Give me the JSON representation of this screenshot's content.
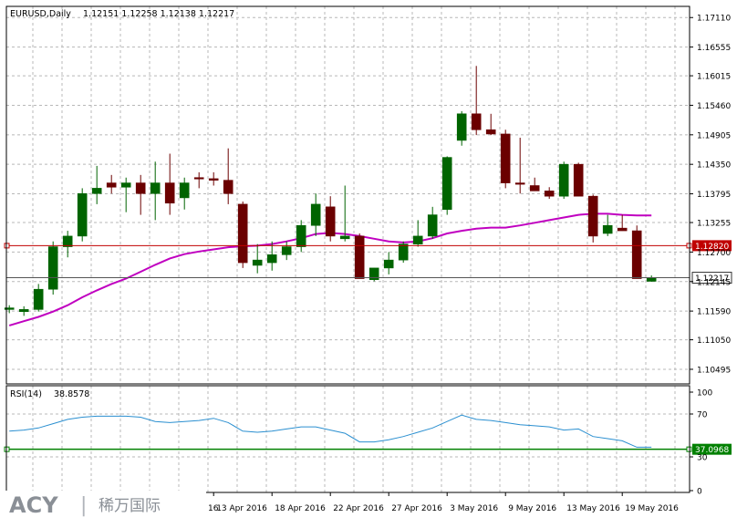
{
  "header": {
    "symbol": "EURUSD,Daily",
    "ohlc": "1.12151 1.12258 1.12138 1.12217"
  },
  "chart_data": [
    {
      "type": "candlestick",
      "title": "EURUSD,Daily",
      "ylim": [
        1.1022,
        1.1732
      ],
      "yticks": [
        "1.17110",
        "1.16555",
        "1.16015",
        "1.15460",
        "1.14905",
        "1.14350",
        "1.13795",
        "1.13255",
        "1.12700",
        "1.12145",
        "1.11590",
        "1.11050",
        "1.10495"
      ],
      "xticks": [
        {
          "i": 14,
          "label": "13 Apr 2016"
        },
        {
          "i": 18,
          "label": "18 Apr 2016"
        },
        {
          "i": 22,
          "label": "22 Apr 2016"
        },
        {
          "i": 26,
          "label": "27 Apr 2016"
        },
        {
          "i": 30,
          "label": "3 May 2016"
        },
        {
          "i": 34,
          "label": "9 May 2016"
        },
        {
          "i": 38,
          "label": "13 May 2016"
        },
        {
          "i": 42,
          "label": "19 May 2016"
        }
      ],
      "hlines": [
        {
          "value": 1.1282,
          "label": "1.12820",
          "color": "#c00000"
        },
        {
          "value": 1.12217,
          "label": "1.12217",
          "color": "#555555"
        }
      ],
      "ma_color": "#c000c0",
      "up_color": "#006400",
      "down_color": "#6b0000",
      "candles": [
        [
          1.1162,
          1.117,
          1.1155,
          1.1165
        ],
        [
          1.1158,
          1.1168,
          1.115,
          1.1162
        ],
        [
          1.1162,
          1.121,
          1.1158,
          1.12
        ],
        [
          1.12,
          1.129,
          1.119,
          1.128
        ],
        [
          1.128,
          1.131,
          1.126,
          1.13
        ],
        [
          1.13,
          1.139,
          1.129,
          1.138
        ],
        [
          1.138,
          1.1432,
          1.136,
          1.139
        ],
        [
          1.14,
          1.1415,
          1.138,
          1.1392
        ],
        [
          1.1392,
          1.141,
          1.1345,
          1.14
        ],
        [
          1.14,
          1.1415,
          1.134,
          1.138
        ],
        [
          1.138,
          1.144,
          1.133,
          1.14
        ],
        [
          1.14,
          1.1455,
          1.134,
          1.1362
        ],
        [
          1.1372,
          1.141,
          1.135,
          1.14
        ],
        [
          1.141,
          1.142,
          1.139,
          1.1408
        ],
        [
          1.1408,
          1.142,
          1.1395,
          1.1405
        ],
        [
          1.1405,
          1.1465,
          1.136,
          1.138
        ],
        [
          1.136,
          1.1365,
          1.124,
          1.125
        ],
        [
          1.1245,
          1.1285,
          1.123,
          1.1255
        ],
        [
          1.125,
          1.129,
          1.1235,
          1.1265
        ],
        [
          1.1265,
          1.129,
          1.1255,
          1.128
        ],
        [
          1.128,
          1.133,
          1.127,
          1.132
        ],
        [
          1.132,
          1.138,
          1.13,
          1.136
        ],
        [
          1.1355,
          1.1375,
          1.129,
          1.13
        ],
        [
          1.1295,
          1.1395,
          1.129,
          1.13
        ],
        [
          1.13,
          1.1305,
          1.122,
          1.122
        ],
        [
          1.1218,
          1.124,
          1.1215,
          1.124
        ],
        [
          1.124,
          1.127,
          1.1228,
          1.1255
        ],
        [
          1.1255,
          1.129,
          1.125,
          1.1285
        ],
        [
          1.1285,
          1.133,
          1.128,
          1.13
        ],
        [
          1.13,
          1.1355,
          1.1295,
          1.134
        ],
        [
          1.135,
          1.145,
          1.134,
          1.1448
        ],
        [
          1.148,
          1.1535,
          1.147,
          1.153
        ],
        [
          1.153,
          1.162,
          1.149,
          1.15
        ],
        [
          1.15,
          1.153,
          1.149,
          1.1492
        ],
        [
          1.1492,
          1.15,
          1.139,
          1.14
        ],
        [
          1.14,
          1.1485,
          1.138,
          1.1398
        ],
        [
          1.1395,
          1.141,
          1.1385,
          1.1385
        ],
        [
          1.1385,
          1.1392,
          1.137,
          1.1375
        ],
        [
          1.1375,
          1.144,
          1.137,
          1.1435
        ],
        [
          1.1435,
          1.1438,
          1.1375,
          1.1375
        ],
        [
          1.1375,
          1.1378,
          1.1288,
          1.13
        ],
        [
          1.1305,
          1.134,
          1.13,
          1.132
        ],
        [
          1.1315,
          1.134,
          1.131,
          1.131
        ],
        [
          1.131,
          1.132,
          1.122,
          1.122
        ],
        [
          1.1215,
          1.1226,
          1.1214,
          1.1222
        ]
      ],
      "ma": [
        1.1132,
        1.114,
        1.1148,
        1.1158,
        1.117,
        1.1185,
        1.1198,
        1.121,
        1.122,
        1.1233,
        1.1246,
        1.1258,
        1.1266,
        1.1271,
        1.1275,
        1.1279,
        1.1281,
        1.1282,
        1.1285,
        1.129,
        1.1296,
        1.1304,
        1.1306,
        1.1304,
        1.13,
        1.1295,
        1.129,
        1.1288,
        1.129,
        1.1296,
        1.1305,
        1.131,
        1.1314,
        1.1316,
        1.1316,
        1.132,
        1.1325,
        1.133,
        1.1335,
        1.134,
        1.1342,
        1.1342,
        1.134,
        1.1339,
        1.1339
      ]
    },
    {
      "type": "line",
      "title": "RSI(14)",
      "current": "38.8578",
      "ylim": [
        0,
        100
      ],
      "yticks": [
        "100",
        "70",
        "30",
        "0"
      ],
      "hline": {
        "value": 37.0968,
        "label": "37.0968",
        "color": "#008000"
      },
      "line_color": "#2a8fd0",
      "values": [
        54,
        55,
        57,
        61,
        65,
        67,
        68,
        68,
        68,
        67,
        63,
        62,
        63,
        64,
        66,
        62,
        54,
        53,
        54,
        56,
        58,
        58,
        55,
        52,
        44,
        44,
        46,
        49,
        53,
        57,
        63,
        69,
        65,
        64,
        62,
        60,
        59,
        58,
        55,
        56,
        49,
        47,
        45,
        39,
        39
      ]
    }
  ],
  "watermark": {
    "brand": "ACY",
    "separator": "|",
    "cn_name": "稀万国际",
    "partial_xlabel": "16"
  }
}
